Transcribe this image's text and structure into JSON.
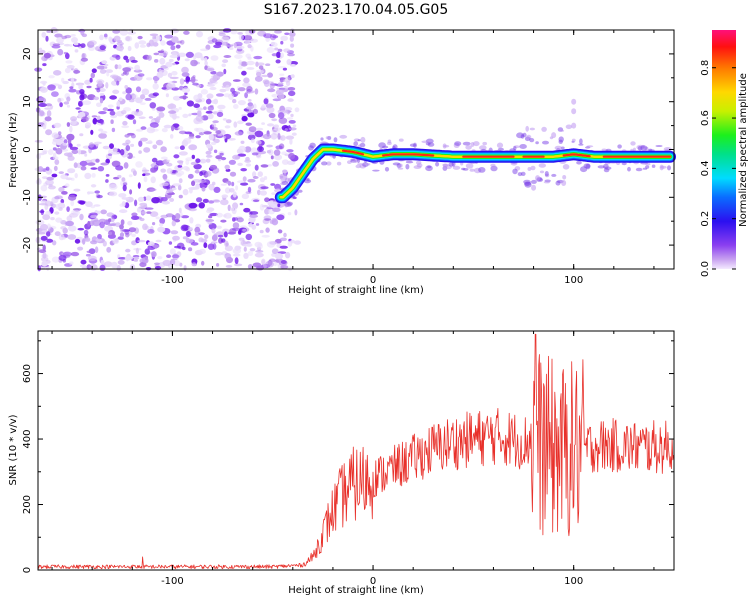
{
  "title": "S167.2023.170.04.05.G05",
  "chart_data": [
    {
      "type": "heatmap",
      "xlabel": "Height of straight line (km)",
      "ylabel": "Frequency (Hz)",
      "xlim": [
        -167,
        150
      ],
      "ylim": [
        -25,
        25
      ],
      "xticks": [
        -100,
        0,
        100
      ],
      "yticks": [
        -20,
        -10,
        0,
        10,
        20
      ],
      "colorbar": {
        "label": "Normalized spectral amplitude",
        "range": [
          0,
          0.95
        ],
        "ticks": [
          0.0,
          0.2,
          0.4,
          0.6,
          0.8
        ]
      },
      "noise_region_x": [
        -167,
        -40
      ],
      "signal_ridge": {
        "x": [
          -45,
          -40,
          -35,
          -30,
          -25,
          -20,
          -10,
          0,
          10,
          20,
          40,
          60,
          80,
          90,
          100,
          110,
          120,
          130,
          148
        ],
        "y": [
          -10,
          -8,
          -5,
          -2,
          0,
          0,
          -0.5,
          -1.5,
          -1,
          -1,
          -1.5,
          -1.5,
          -1.5,
          -1.5,
          -1,
          -1.5,
          -1.5,
          -1.5,
          -1.5
        ]
      }
    },
    {
      "type": "line",
      "xlabel": "Height of straight line (km)",
      "ylabel": "SNR (10 * v/v)",
      "xlim": [
        -167,
        150
      ],
      "ylim": [
        0,
        730
      ],
      "xticks": [
        -100,
        0,
        100
      ],
      "yticks": [
        0,
        200,
        400,
        600
      ],
      "color": "#e8302a",
      "series": [
        {
          "x": [
            -167,
            -140,
            -110,
            -80,
            -50,
            -35,
            -30,
            -25,
            -20,
            -15,
            -10,
            -5,
            0,
            10,
            20,
            30,
            40,
            50,
            60,
            70,
            75,
            80,
            85,
            90,
            95,
            100,
            105,
            110,
            120,
            130,
            140,
            150
          ],
          "y": [
            10,
            10,
            10,
            10,
            10,
            15,
            40,
            110,
            180,
            230,
            260,
            270,
            280,
            310,
            340,
            370,
            390,
            400,
            410,
            400,
            390,
            400,
            380,
            370,
            360,
            370,
            370,
            380,
            380,
            375,
            375,
            375
          ]
        }
      ]
    }
  ]
}
